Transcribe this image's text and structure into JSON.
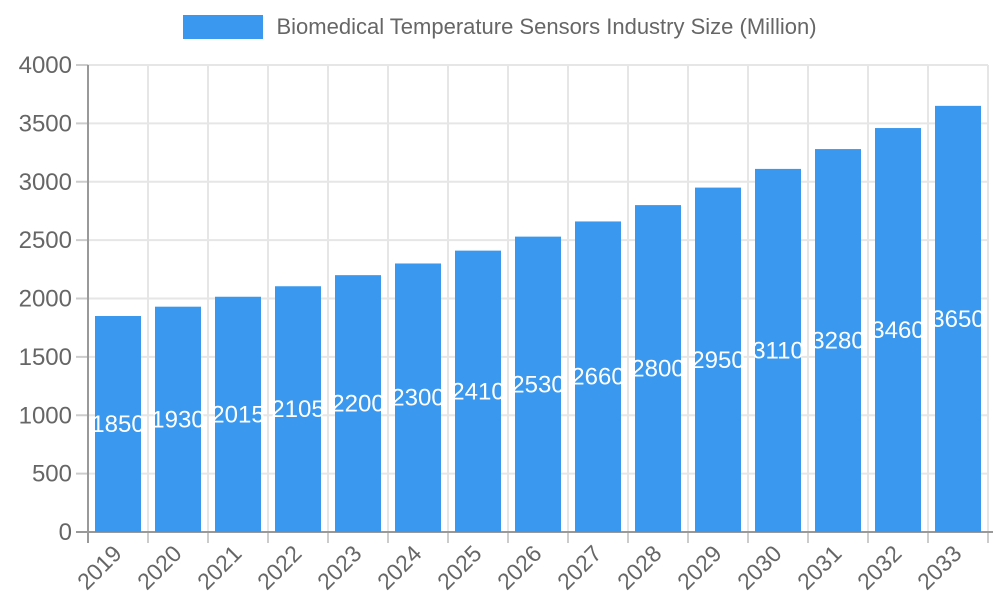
{
  "legend": {
    "label": "Biomedical Temperature Sensors Industry Size (Million)"
  },
  "chart_data": {
    "type": "bar",
    "title": "Biomedical Temperature Sensors Industry Size (Million)",
    "categories": [
      "2019",
      "2020",
      "2021",
      "2022",
      "2023",
      "2024",
      "2025",
      "2026",
      "2027",
      "2028",
      "2029",
      "2030",
      "2031",
      "2032",
      "2033"
    ],
    "values": [
      1850,
      1930,
      2015,
      2105,
      2200,
      2300,
      2410,
      2530,
      2660,
      2800,
      2950,
      3110,
      3280,
      3460,
      3650
    ],
    "data_labels_shown": true,
    "xlabel": "",
    "ylabel": "",
    "ylim": [
      0,
      4000
    ],
    "yticks": [
      0,
      500,
      1000,
      1500,
      2000,
      2500,
      3000,
      3500,
      4000
    ],
    "grid": true,
    "legend_position": "top",
    "colors": {
      "bar": "#3a99ee",
      "grid": "#e6e6e6",
      "axis_line": "#999999",
      "tick_mark": "#cccccc",
      "axis_text": "#666666",
      "data_label": "#ffffff",
      "background": "#ffffff"
    }
  }
}
